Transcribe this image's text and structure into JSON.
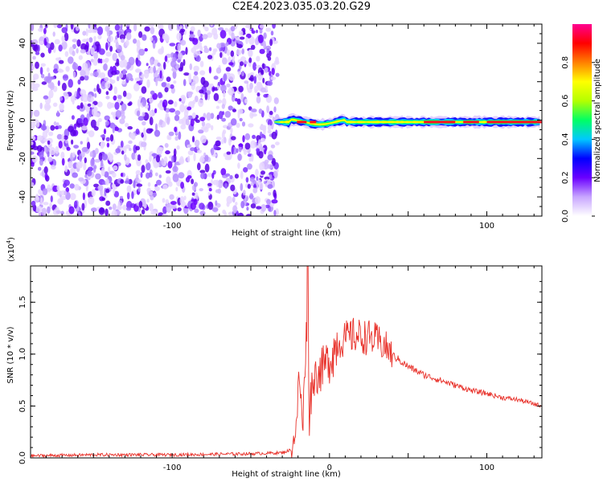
{
  "title": "C2E4.2023.035.03.20.G29",
  "chart_data": [
    {
      "type": "heatmap",
      "xlabel": "Height of straight line (km)",
      "ylabel": "Frequency (Hz)",
      "xlim": [
        -190,
        135
      ],
      "ylim": [
        -50,
        50
      ],
      "x_ticks": [
        -100,
        0,
        100
      ],
      "y_ticks": [
        -40,
        -20,
        0,
        20,
        40
      ],
      "colorbar": {
        "label": "Normalized spectral amplitude",
        "range": [
          0.0,
          1.0
        ],
        "ticks": [
          "0.0",
          "0.2",
          "0.4",
          "0.6",
          "0.8"
        ],
        "tick_values": [
          0.0,
          0.2,
          0.4,
          0.6,
          0.8
        ],
        "colors": [
          "#ffffff",
          "#c8a6ff",
          "#6a00ff",
          "#0000ff",
          "#00c8ff",
          "#00ff64",
          "#b4ff00",
          "#ffff00",
          "#ff8000",
          "#ff0000",
          "#ff0090"
        ]
      },
      "noise_region_x": [
        -190,
        -35
      ],
      "signal_band": {
        "x": [
          -35,
          135
        ],
        "center_freq": -1,
        "peak_amplitude": 1.0
      }
    },
    {
      "type": "line",
      "xlabel": "Height of straight line (km)",
      "ylabel": "SNR (10 * v/v)",
      "yunit_label": "(x10",
      "yunit_exp": "4",
      "yunit_close": ")",
      "xlim": [
        -190,
        135
      ],
      "ylim": [
        0.0,
        1.85
      ],
      "x_ticks": [
        -100,
        0,
        100
      ],
      "y_ticks": [
        "0.0",
        "0.5",
        "1.0",
        "1.5"
      ],
      "y_tick_values": [
        0.0,
        0.5,
        1.0,
        1.5
      ],
      "color": "#e8312a",
      "x": [
        -190,
        -150,
        -100,
        -50,
        -30,
        -24,
        -21,
        -19,
        -17,
        -14,
        -13,
        -12,
        -10,
        -5,
        0,
        5,
        10,
        15,
        20,
        25,
        30,
        35,
        40,
        50,
        60,
        70,
        80,
        90,
        100,
        110,
        120,
        130,
        135
      ],
      "y": [
        0.02,
        0.03,
        0.03,
        0.04,
        0.05,
        0.08,
        0.3,
        0.85,
        0.2,
        1.85,
        0.25,
        0.6,
        0.78,
        0.85,
        0.95,
        1.1,
        1.15,
        1.18,
        1.17,
        1.16,
        1.13,
        1.08,
        0.99,
        0.88,
        0.8,
        0.75,
        0.7,
        0.65,
        0.62,
        0.58,
        0.56,
        0.52,
        0.5
      ]
    }
  ]
}
